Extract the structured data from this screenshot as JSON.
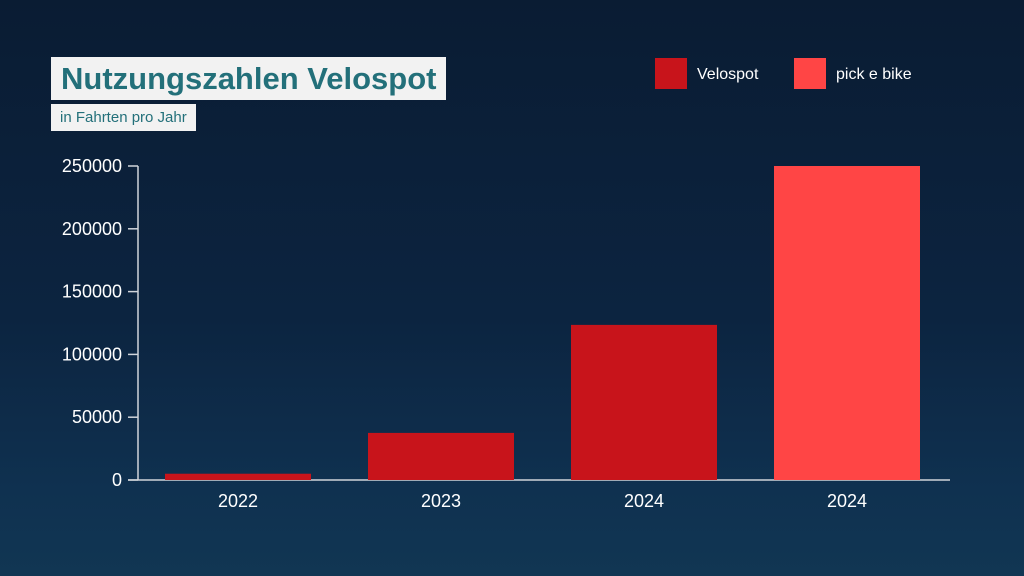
{
  "title": "Nutzungszahlen Velospot",
  "subtitle": "in Fahrten pro Jahr",
  "colors": {
    "velospot": "#c8141b",
    "pick_e_bike": "#ff4545",
    "axis": "#d0d4da",
    "text": "#ffffff"
  },
  "chart_data": {
    "type": "bar",
    "title": "Nutzungszahlen Velospot",
    "subtitle": "in Fahrten pro Jahr",
    "xlabel": "",
    "ylabel": "",
    "ylim": [
      0,
      250000
    ],
    "yticks": [
      "0",
      "50000",
      "100000",
      "150000",
      "200000",
      "250000"
    ],
    "categories": [
      "2022",
      "2023",
      "2024",
      "2024"
    ],
    "series": [
      {
        "name": "Velospot",
        "color": "#c8141b",
        "values": [
          5000,
          37500,
          123500,
          null
        ]
      },
      {
        "name": "pick e bike",
        "color": "#ff4545",
        "values": [
          null,
          null,
          null,
          250000
        ]
      }
    ],
    "legend": {
      "position": "top-right",
      "entries": [
        "Velospot",
        "pick e bike"
      ]
    },
    "grid": false
  }
}
